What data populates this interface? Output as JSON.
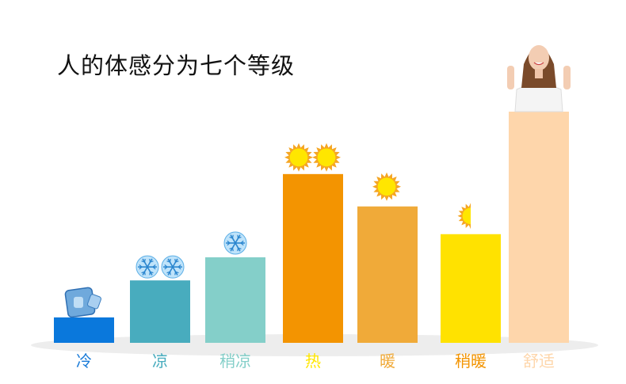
{
  "title": "人的体感分为七个等级",
  "chart_data": {
    "type": "bar",
    "title": "人的体感分为七个等级",
    "xlabel": "",
    "ylabel": "",
    "ylim": [
      0,
      100
    ],
    "grid": false,
    "categories": [
      "冷",
      "凉",
      "稍凉",
      "热",
      "暖",
      "稍暖",
      "舒适"
    ],
    "values": [
      11,
      27,
      37,
      73,
      59,
      47,
      100
    ],
    "colors": [
      "#0a78dc",
      "#48acbe",
      "#84cfc9",
      "#f39401",
      "#f0aa39",
      "#ffe200",
      "#fed6ab"
    ],
    "label_colors": [
      "#1a7bd8",
      "#48acbe",
      "#84cfc9",
      "#ffe600",
      "#f0aa39",
      "#f39401",
      "#fed6ab"
    ],
    "icons": [
      "ice-cube",
      "snowflake x2",
      "snowflake x1",
      "sun x2",
      "sun x1",
      "half-sun",
      "smiling-woman-thumbs-up"
    ]
  }
}
